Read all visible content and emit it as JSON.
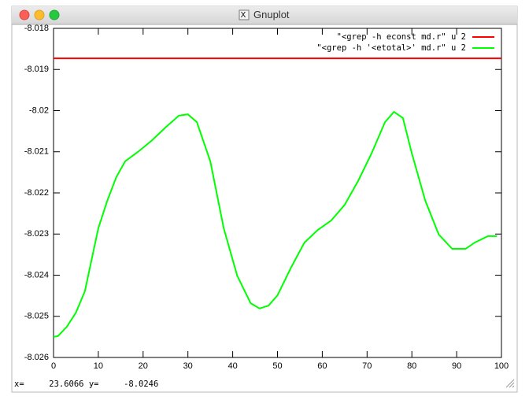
{
  "window_title": "Gnuplot",
  "status_text": "x=     23.6066 y=     -8.0246",
  "chart_data": {
    "type": "line",
    "xlim": [
      0,
      100
    ],
    "ylim": [
      -8.026,
      -8.018
    ],
    "xticks": [
      0,
      10,
      20,
      30,
      40,
      50,
      60,
      70,
      80,
      90,
      100
    ],
    "yticks": [
      -8.026,
      -8.025,
      -8.024,
      -8.023,
      -8.022,
      -8.021,
      -8.02,
      -8.019,
      -8.018
    ],
    "legend": "top-right",
    "series": [
      {
        "name": "\"<grep -h econst md.r\" u 2",
        "color": "#ff0000",
        "x": [
          0,
          100
        ],
        "values": [
          -8.01873,
          -8.01873
        ]
      },
      {
        "name": "\"<grep -h '<etotal>' md.r\" u 2",
        "color": "#00ff00",
        "x": [
          0,
          1,
          3,
          5,
          7,
          10,
          12,
          14,
          16,
          19,
          22,
          25,
          28,
          30,
          32,
          35,
          38,
          41,
          44,
          46,
          48,
          50,
          53,
          56,
          59,
          62,
          65,
          68,
          71,
          74,
          76,
          78,
          80,
          83,
          86,
          89,
          92,
          94,
          97,
          99
        ],
        "values": [
          -8.0255,
          -8.02548,
          -8.02525,
          -8.02491,
          -8.02439,
          -8.02286,
          -8.02219,
          -8.02162,
          -8.02123,
          -8.02099,
          -8.02072,
          -8.02041,
          -8.02012,
          -8.02009,
          -8.02028,
          -8.02123,
          -8.02286,
          -8.02401,
          -8.02468,
          -8.02481,
          -8.02474,
          -8.02449,
          -8.02382,
          -8.02321,
          -8.0229,
          -8.02267,
          -8.02229,
          -8.02171,
          -8.02104,
          -8.02028,
          -8.02003,
          -8.02018,
          -8.02104,
          -8.02219,
          -8.02301,
          -8.02336,
          -8.02336,
          -8.02321,
          -8.02305,
          -8.02305
        ]
      }
    ]
  }
}
